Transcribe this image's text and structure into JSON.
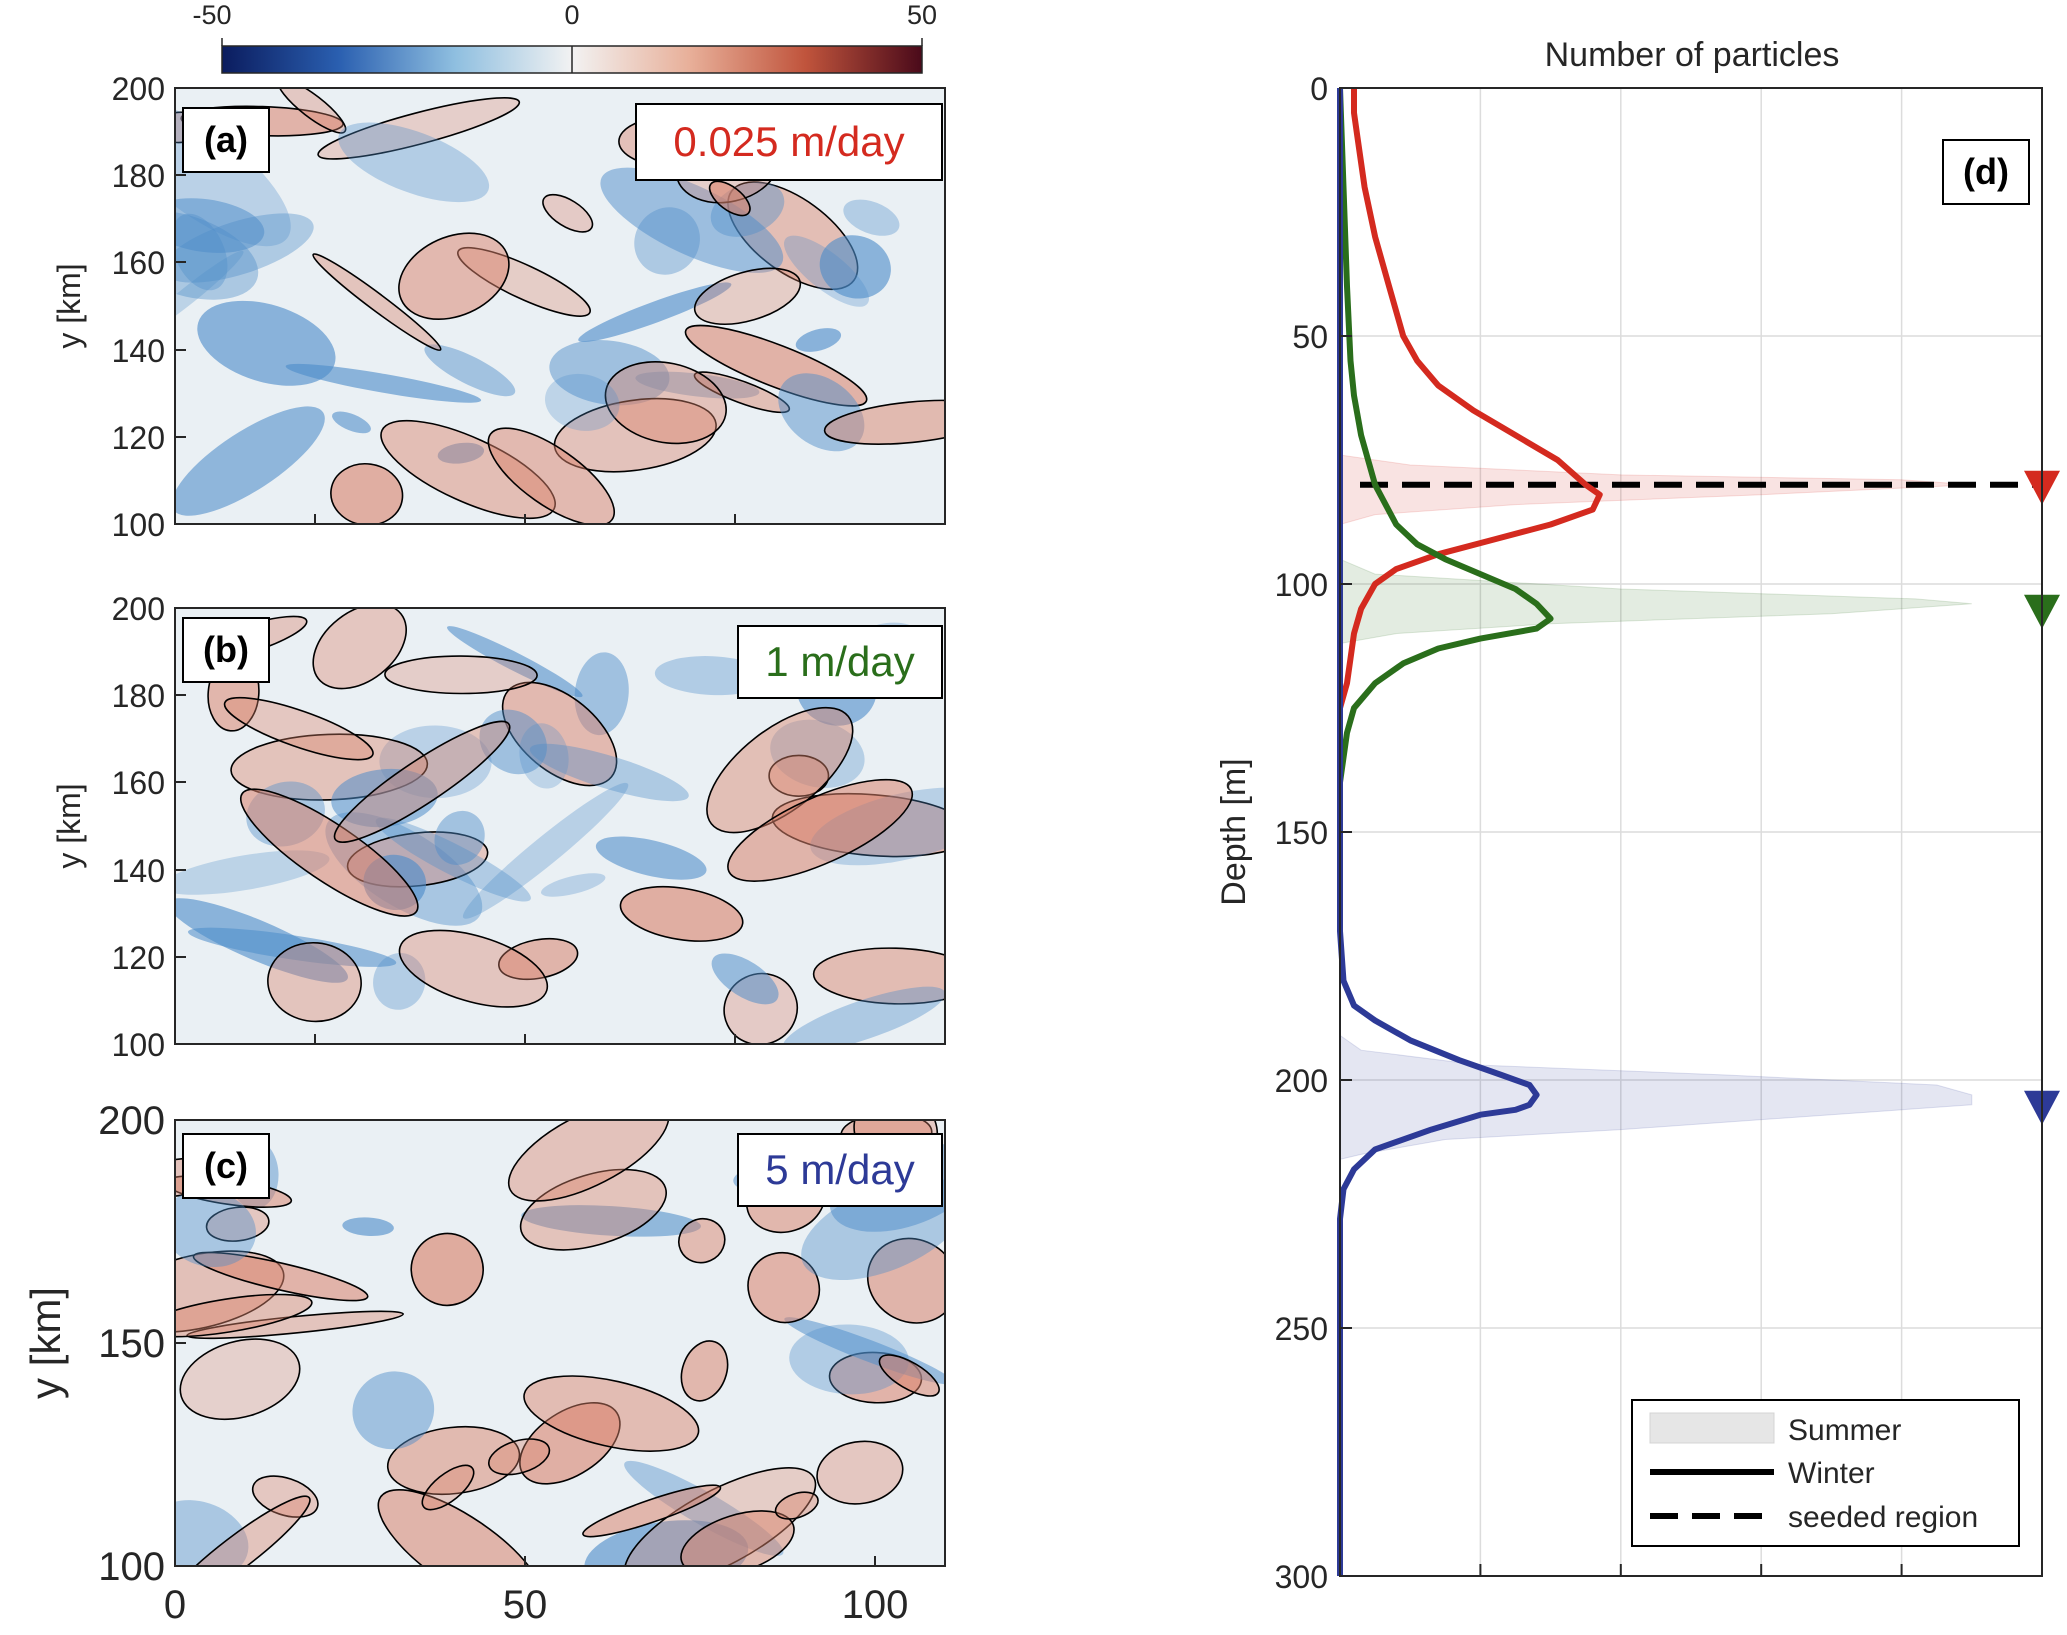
{
  "colorbar": {
    "tick_labels": [
      "-50",
      "0",
      "50"
    ],
    "range": [
      -50,
      50
    ],
    "colors": [
      "#0b1c5e",
      "#2a5fb0",
      "#8fbfe0",
      "#f2f2f2",
      "#e8b09a",
      "#c0543c",
      "#4a0a1a"
    ]
  },
  "fields": {
    "background": "#eaf0f4",
    "blue": "#4d8cc9",
    "red": "#d9826b",
    "contour": "#000000"
  },
  "panels": [
    {
      "label": "(a)",
      "speed": "0.025 m/day",
      "speed_color": "#d42a1f",
      "ylabel": "y [km]",
      "yticks": [
        "200",
        "180",
        "160",
        "140",
        "120",
        "100"
      ]
    },
    {
      "label": "(b)",
      "speed": "1 m/day",
      "speed_color": "#2a6e1b",
      "ylabel": "y [km]",
      "yticks": [
        "200",
        "180",
        "160",
        "140",
        "120",
        "100"
      ]
    },
    {
      "label": "(c)",
      "speed": "5 m/day",
      "speed_color": "#2d3a97",
      "ylabel": "y [km]",
      "yticks": [
        "200",
        "150",
        "100"
      ],
      "xticks": [
        "0",
        "50",
        "100"
      ]
    }
  ],
  "chart_data": {
    "type": "line",
    "title": "Number of particles",
    "panel_label": "(d)",
    "ylabel": "Depth [m]",
    "ylim": [
      0,
      300
    ],
    "yticks": [
      "0",
      "50",
      "100",
      "150",
      "200",
      "250",
      "300"
    ],
    "y_reversed": true,
    "xlim": [
      0,
      1
    ],
    "x_tick_labels_shown": false,
    "grid": true,
    "legend_position": "bottom-right",
    "legend": [
      {
        "label": "Summer",
        "style": "shaded"
      },
      {
        "label": "Winter",
        "style": "solid"
      },
      {
        "label": "seeded region",
        "style": "dashed"
      }
    ],
    "seeded_depth": 80,
    "series": [
      {
        "color": "#d42a1f",
        "winter": [
          [
            0.02,
            0
          ],
          [
            0.02,
            5
          ],
          [
            0.025,
            10
          ],
          [
            0.035,
            20
          ],
          [
            0.05,
            30
          ],
          [
            0.07,
            40
          ],
          [
            0.09,
            50
          ],
          [
            0.11,
            55
          ],
          [
            0.14,
            60
          ],
          [
            0.19,
            65
          ],
          [
            0.25,
            70
          ],
          [
            0.31,
            75
          ],
          [
            0.35,
            80
          ],
          [
            0.37,
            82
          ],
          [
            0.36,
            85
          ],
          [
            0.3,
            88
          ],
          [
            0.22,
            91
          ],
          [
            0.14,
            94
          ],
          [
            0.08,
            97
          ],
          [
            0.05,
            100
          ],
          [
            0.03,
            105
          ],
          [
            0.02,
            110
          ],
          [
            0.015,
            115
          ],
          [
            0.01,
            120
          ],
          [
            0,
            125
          ]
        ],
        "summer": [
          [
            0,
            74
          ],
          [
            0.1,
            76
          ],
          [
            0.4,
            78
          ],
          [
            0.8,
            79
          ],
          [
            0.9,
            80
          ],
          [
            0.6,
            82
          ],
          [
            0.25,
            84
          ],
          [
            0.05,
            86
          ],
          [
            0,
            88
          ]
        ],
        "marker_depth": 80
      },
      {
        "color": "#2a6e1b",
        "winter": [
          [
            0,
            0
          ],
          [
            0.005,
            20
          ],
          [
            0.01,
            40
          ],
          [
            0.015,
            55
          ],
          [
            0.02,
            62
          ],
          [
            0.03,
            70
          ],
          [
            0.05,
            80
          ],
          [
            0.08,
            88
          ],
          [
            0.11,
            92
          ],
          [
            0.15,
            95
          ],
          [
            0.2,
            98
          ],
          [
            0.25,
            101
          ],
          [
            0.28,
            104
          ],
          [
            0.3,
            107
          ],
          [
            0.28,
            109
          ],
          [
            0.2,
            111
          ],
          [
            0.14,
            113
          ],
          [
            0.09,
            116
          ],
          [
            0.05,
            120
          ],
          [
            0.02,
            125
          ],
          [
            0.01,
            130
          ],
          [
            0,
            140
          ]
        ],
        "summer": [
          [
            0,
            95
          ],
          [
            0.05,
            98
          ],
          [
            0.4,
            101
          ],
          [
            0.82,
            103
          ],
          [
            0.9,
            104
          ],
          [
            0.7,
            106
          ],
          [
            0.3,
            108
          ],
          [
            0.08,
            110
          ],
          [
            0,
            112
          ]
        ],
        "marker_depth": 105
      },
      {
        "color": "#2d3a97",
        "winter": [
          [
            0,
            0
          ],
          [
            0,
            170
          ],
          [
            0.005,
            180
          ],
          [
            0.02,
            185
          ],
          [
            0.05,
            188
          ],
          [
            0.1,
            192
          ],
          [
            0.17,
            196
          ],
          [
            0.23,
            199
          ],
          [
            0.27,
            201
          ],
          [
            0.28,
            203
          ],
          [
            0.27,
            205
          ],
          [
            0.25,
            206
          ],
          [
            0.2,
            207
          ],
          [
            0.13,
            210
          ],
          [
            0.05,
            214
          ],
          [
            0.02,
            218
          ],
          [
            0.005,
            222
          ],
          [
            0,
            228
          ],
          [
            0,
            300
          ]
        ],
        "summer": [
          [
            0,
            191
          ],
          [
            0.03,
            194
          ],
          [
            0.2,
            197
          ],
          [
            0.55,
            199
          ],
          [
            0.85,
            201
          ],
          [
            0.9,
            203
          ],
          [
            0.9,
            205
          ],
          [
            0.7,
            207
          ],
          [
            0.4,
            210
          ],
          [
            0.15,
            212
          ],
          [
            0.03,
            215
          ],
          [
            0,
            216
          ]
        ],
        "marker_depth": 205
      }
    ]
  }
}
